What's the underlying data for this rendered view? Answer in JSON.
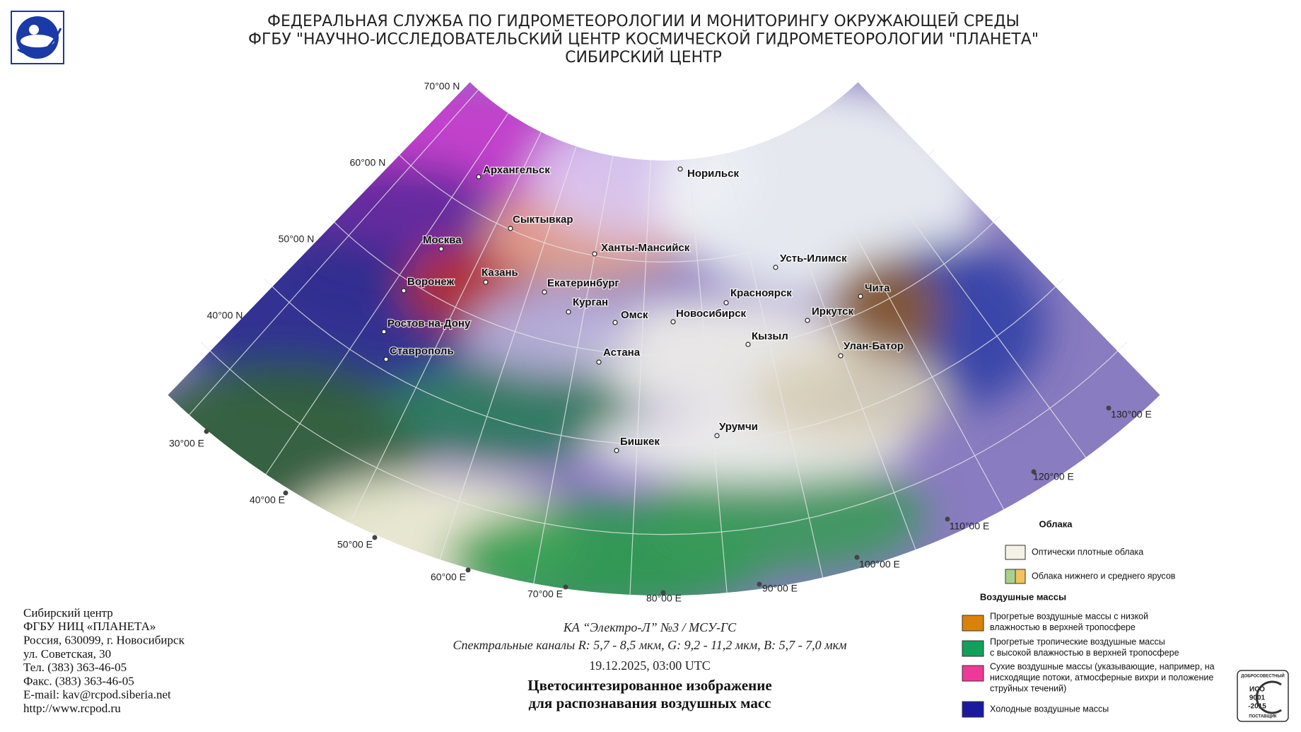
{
  "header": {
    "lines": [
      "ФЕДЕРАЛЬНАЯ СЛУЖБА ПО ГИДРОМЕТЕОРОЛОГИИ И МОНИТОРИНГУ ОКРУЖАЮЩЕЙ СРЕДЫ",
      "ФГБУ \"НАУЧНО-ИССЛЕДОВАТЕЛЬСКИЙ ЦЕНТР КОСМИЧЕСКОЙ ГИДРОМЕТЕОРОЛОГИИ \"ПЛАНЕТА\"",
      "СИБИРСКИЙ ЦЕНТР"
    ]
  },
  "graticule": {
    "latitudes": [
      "70°00 N",
      "60°00 N",
      "50°00 N",
      "40°00 N"
    ],
    "longitudes": [
      "30°00 E",
      "40°00 E",
      "50°00 E",
      "60°00 E",
      "70°00 E",
      "80°00 E",
      "90°00 E",
      "100°00 E",
      "110°00 E",
      "120°00 E",
      "130°00 E"
    ]
  },
  "cities": [
    "Архангельск",
    "Норильск",
    "Сыктывкар",
    "Москва",
    "Ханты-Мансийск",
    "Казань",
    "Воронеж",
    "Екатеринбург",
    "Усть-Илимск",
    "Чита",
    "Красноярск",
    "Курган",
    "Омск",
    "Новосибирск",
    "Иркутск",
    "Ростов-на-Дону",
    "Кызыл",
    "Улан-Батор",
    "Ставрополь",
    "Астана",
    "Урумчи",
    "Бишкек"
  ],
  "legend": {
    "clouds_title": "Облака",
    "clouds": [
      {
        "text": "Оптически плотные облака",
        "colors": [
          "#f4f2e4"
        ]
      },
      {
        "text": "Облака нижнего и среднего ярусов",
        "colors": [
          "#a9d18e",
          "#f2c25c"
        ]
      }
    ],
    "air_title": "Воздушные массы",
    "air": [
      {
        "text": [
          "Прогретые воздушные массы с низкой",
          "влажностью в верхней тропосфере"
        ],
        "color": "#d9820a"
      },
      {
        "text": [
          "Прогретые тропичеcкие воздушные массы",
          "с высокой влажностью в верхней тропосфере"
        ],
        "color": "#12a05a"
      },
      {
        "text": [
          "Сухие воздушные массы (указывающие, например, на",
          "нисходящие потоки, атмосферные вихри и положение",
          "струйных течений)"
        ],
        "color": "#f0389a"
      },
      {
        "text": [
          "Холодные воздушные массы"
        ],
        "color": "#1a1aa0"
      }
    ]
  },
  "footer": {
    "address": [
      "Сибирский центр",
      "ФГБУ НИЦ «ПЛАНЕТА»",
      "Россия, 630099, г. Новосибирск",
      "ул. Советская, 30",
      "Тел. (383) 363-46-05",
      "Факс. (383) 363-46-05",
      "E-mail: kav@rcpod.siberia.net",
      "http://www.rcpod.ru"
    ]
  },
  "caption": {
    "satellite": "КА “Электро-Л” №3 / МСУ-ГС",
    "channels": "Спектральные каналы R: 5,7 - 8,5 мкм, G: 9,2 - 11,2 мкм, B: 5,7 - 7,0 мкм",
    "datetime": "19.12.2025, 03:00 UTC",
    "title": [
      "Цветосинтезированное изображение",
      "для распознавания воздушных масс"
    ]
  },
  "iso": {
    "top": "ДОБРОСОВЕСТНЫЙ",
    "lines": [
      "ИСО",
      "9001",
      "-2015"
    ],
    "bottom": "ПОСТАВЩИК"
  }
}
